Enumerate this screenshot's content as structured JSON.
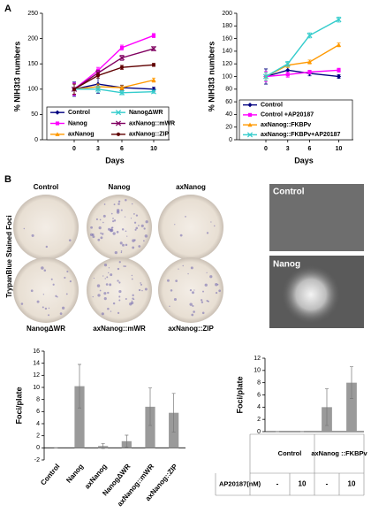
{
  "panel_labels": [
    "A",
    "B"
  ],
  "chart_data": [
    {
      "type": "line",
      "ylabel": "% NIH3t3 numbers",
      "xlabel": "Days",
      "x": [
        0,
        3,
        6,
        10
      ],
      "xlim": [
        -4,
        12
      ],
      "xticks": [
        0,
        3,
        6,
        10
      ],
      "ylim": [
        0,
        250
      ],
      "yticks": [
        0,
        50,
        100,
        150,
        200,
        250
      ],
      "series": [
        {
          "name": "Control",
          "color": "#000080",
          "marker": "diamond",
          "values": [
            100,
            110,
            103,
            100
          ],
          "errors": [
            14,
            18,
            5,
            4
          ]
        },
        {
          "name": "Nanog",
          "color": "#ff00ff",
          "marker": "square",
          "values": [
            100,
            137,
            182,
            206
          ],
          "errors": [
            12,
            6,
            5,
            4
          ]
        },
        {
          "name": "axNanog",
          "color": "#ff9900",
          "marker": "triangle",
          "values": [
            100,
            105,
            103,
            118
          ],
          "errors": [
            10,
            5,
            4,
            4
          ]
        },
        {
          "name": "NanogΔWR",
          "color": "#33cccc",
          "marker": "x",
          "values": [
            100,
            100,
            93,
            95
          ],
          "errors": [
            10,
            6,
            4,
            3
          ]
        },
        {
          "name": "axNanog::mWR",
          "color": "#800060",
          "marker": "x",
          "values": [
            100,
            132,
            162,
            180
          ],
          "errors": [
            10,
            5,
            5,
            4
          ]
        },
        {
          "name": "axNanog::ZIP",
          "color": "#600000",
          "marker": "circle",
          "values": [
            100,
            127,
            143,
            148
          ],
          "errors": [
            10,
            5,
            4,
            3
          ]
        }
      ]
    },
    {
      "type": "line",
      "ylabel": "% NIH3t3 numbers",
      "xlabel": "Days",
      "x": [
        0,
        3,
        6,
        10
      ],
      "xlim": [
        -4,
        12
      ],
      "xticks": [
        0,
        3,
        6,
        10
      ],
      "ylim": [
        0,
        200
      ],
      "yticks": [
        0,
        20,
        40,
        60,
        80,
        100,
        120,
        140,
        160,
        180,
        200
      ],
      "series": [
        {
          "name": "Control",
          "color": "#000080",
          "marker": "diamond",
          "values": [
            100,
            110,
            105,
            100
          ],
          "errors": [
            12,
            6,
            4,
            3
          ]
        },
        {
          "name": "Control +AP20187",
          "color": "#ff00ff",
          "marker": "square",
          "values": [
            100,
            103,
            107,
            110
          ],
          "errors": [
            8,
            4,
            3,
            3
          ]
        },
        {
          "name": "axNanog::FKBPv",
          "color": "#ff9900",
          "marker": "triangle",
          "values": [
            100,
            118,
            123,
            150
          ],
          "errors": [
            6,
            4,
            3,
            3
          ]
        },
        {
          "name": "axNanog::FKBPv+AP20187",
          "color": "#33cccc",
          "marker": "x",
          "values": [
            100,
            120,
            165,
            190
          ],
          "errors": [
            6,
            4,
            4,
            4
          ]
        }
      ]
    },
    {
      "type": "bar",
      "ylabel": "Foci/plate",
      "color": "#9a9a9a",
      "categories": [
        "Control",
        "Nanog",
        "axNanog",
        "NanogΔWR",
        "axNanog::mWR",
        "axNanog::ZIP"
      ],
      "values": [
        0,
        10.2,
        0.3,
        1.1,
        6.8,
        5.8
      ],
      "errors": [
        0,
        3.6,
        0.4,
        1.0,
        3.1,
        3.2
      ],
      "ylim": [
        -2,
        16
      ],
      "yticks": [
        -2,
        0,
        2,
        4,
        6,
        8,
        10,
        12,
        14,
        16
      ]
    },
    {
      "type": "bar",
      "ylabel": "Foci/plate",
      "color": "#9a9a9a",
      "categories": [
        "-",
        "10",
        "-",
        "10"
      ],
      "groups": [
        "Control",
        "axNanog ::FKBPv"
      ],
      "row_label": "AP20187(nM)",
      "values": [
        0,
        0,
        4,
        8
      ],
      "errors": [
        0,
        0,
        3,
        2.6
      ],
      "ylim": [
        0,
        12
      ],
      "yticks": [
        0,
        2,
        4,
        6,
        8,
        10,
        12
      ]
    }
  ],
  "plates": {
    "side_label": "TrypanBlue Stained Foci",
    "labels": [
      "Control",
      "Nanog",
      "axNanog",
      "NanogΔWR",
      "axNanog::mWR",
      "axNanog::ZIP"
    ]
  },
  "micrographs": [
    "Control",
    "Nanog"
  ]
}
